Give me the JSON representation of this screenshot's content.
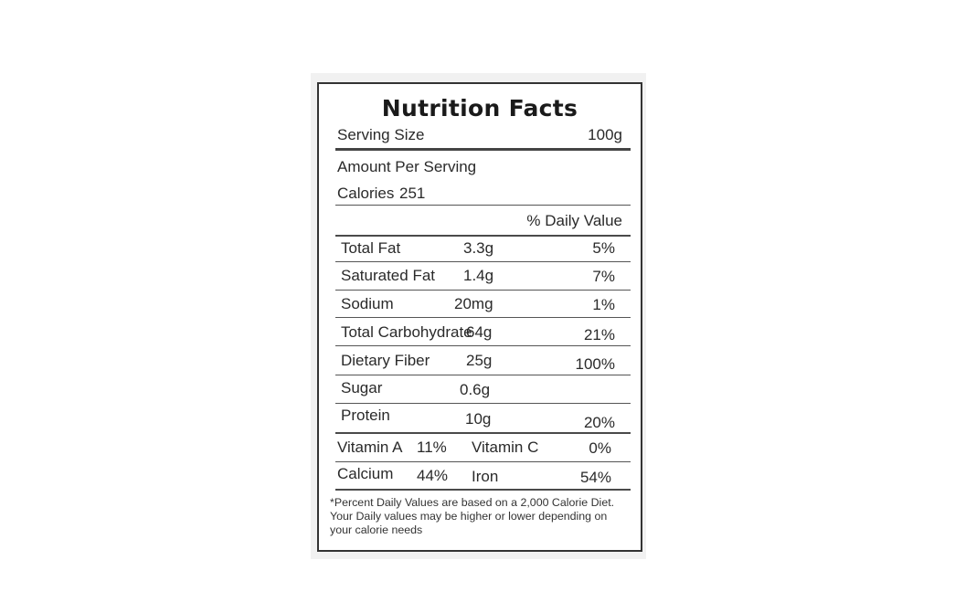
{
  "label": {
    "title": "Nutrition Facts",
    "serving_size_label": "Serving Size",
    "serving_size_value": "100g",
    "amount_per_serving": "Amount Per Serving",
    "calories_label": "Calories",
    "calories_value": "251",
    "daily_value_header": "% Daily Value",
    "nutrients": [
      {
        "name": "Total Fat",
        "amount": "3.3g",
        "dv": "5%"
      },
      {
        "name": "Saturated Fat",
        "amount": "1.4g",
        "dv": "7%"
      },
      {
        "name": "Sodium",
        "amount": "20mg",
        "dv": "1%"
      },
      {
        "name": "Total Carbohydrate",
        "amount": "64g",
        "dv": "21%"
      },
      {
        "name": "Dietary Fiber",
        "amount": "25g",
        "dv": "100%"
      },
      {
        "name": "Sugar",
        "amount": "0.6g",
        "dv": ""
      },
      {
        "name": "Protein",
        "amount": "10g",
        "dv": "20%"
      }
    ],
    "vitamins": [
      {
        "left_name": "Vitamin A",
        "left_value": "11%",
        "right_name": "Vitamin C",
        "right_value": "0%"
      },
      {
        "left_name": "Calcium",
        "left_value": "44%",
        "right_name": "Iron",
        "right_value": "54%"
      }
    ],
    "footnote": [
      "*Percent Daily Values are based on a 2,000 Calorie Diet.",
      "Your Daily values may be higher or lower depending on",
      "your calorie needs"
    ]
  }
}
